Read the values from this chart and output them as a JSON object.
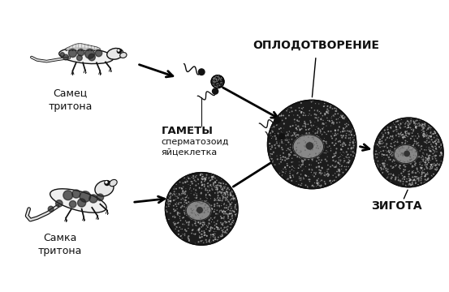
{
  "bg_color": "#ffffff",
  "text_oplodotvorenie": "ОПЛОДОТВОРЕНИЕ",
  "text_gamety": "ГАМЕТЫ",
  "text_spermatozoid": "сперматозоид",
  "text_yaycekletka": "яйцеклетка",
  "text_zigota": "ЗИГОТА",
  "text_samec": "Самец\nтритона",
  "text_samka": "Самка\nтритона",
  "figsize": [
    5.53,
    3.6
  ],
  "dpi": 100
}
